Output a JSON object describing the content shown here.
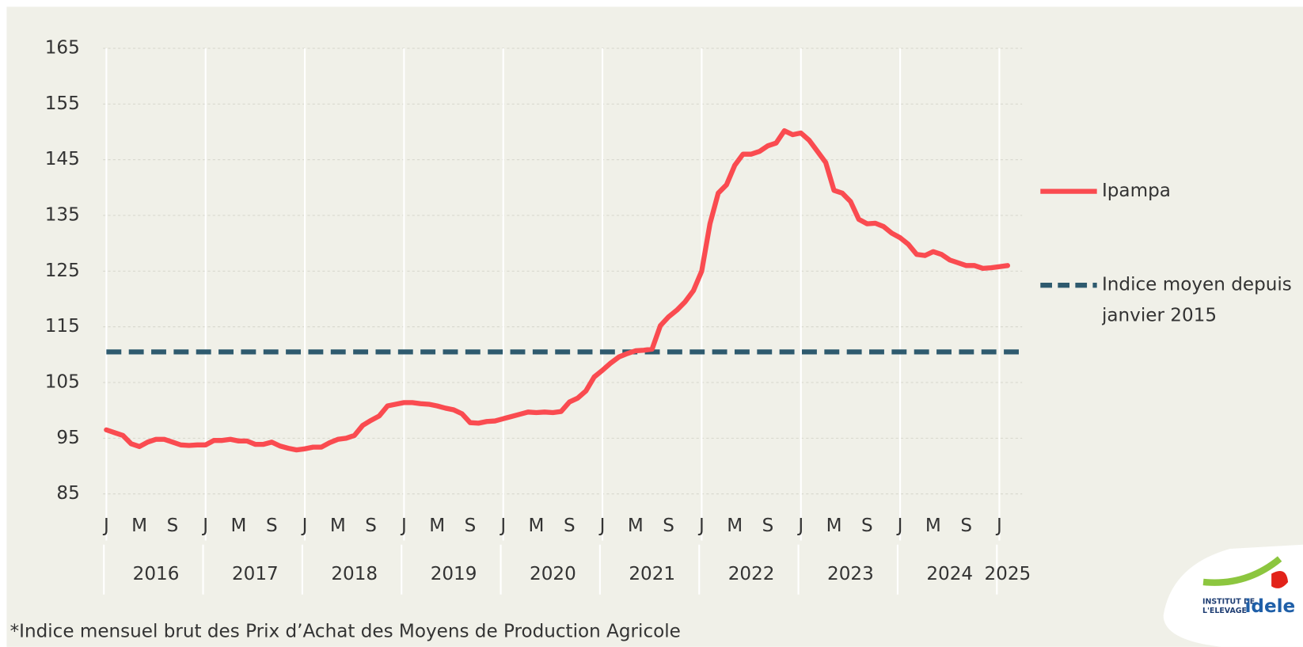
{
  "chart_data": {
    "type": "line",
    "categories": [
      "J",
      null,
      null,
      null,
      "M",
      null,
      null,
      null,
      "S",
      null,
      null,
      null,
      "J",
      null,
      null,
      null,
      "M",
      null,
      null,
      null,
      "S",
      null,
      null,
      null,
      "J",
      null,
      null,
      null,
      "M",
      null,
      null,
      null,
      "S",
      null,
      null,
      null,
      "J",
      null,
      null,
      null,
      "M",
      null,
      null,
      null,
      "S",
      null,
      null,
      null,
      "J",
      null,
      null,
      null,
      "M",
      null,
      null,
      null,
      "S",
      null,
      null,
      null,
      "J",
      null,
      null,
      null,
      "M",
      null,
      null,
      null,
      "S",
      null,
      null,
      null,
      "J",
      null,
      null,
      null,
      "M",
      null,
      null,
      null,
      "S",
      null,
      null,
      null,
      "J",
      null,
      null,
      null,
      "M",
      null,
      null,
      null,
      "S",
      null,
      null,
      null,
      "J",
      null,
      null,
      null,
      "M",
      null,
      null,
      null,
      "S",
      null,
      null,
      null,
      "J",
      null
    ],
    "years": [
      "2016",
      "2017",
      "2018",
      "2019",
      "2020",
      "2021",
      "2022",
      "2023",
      "2024",
      "2025"
    ],
    "series": [
      {
        "name": "Ipampa",
        "color": "#fa4b50",
        "values": [
          96.5,
          96,
          95.5,
          94,
          93.5,
          94.3,
          94.8,
          94.8,
          94.3,
          93.8,
          93.7,
          93.8,
          93.8,
          94.6,
          94.6,
          94.8,
          94.5,
          94.5,
          93.9,
          93.9,
          94.3,
          93.6,
          93.2,
          92.9,
          93.1,
          93.4,
          93.4,
          94.2,
          94.8,
          95,
          95.5,
          97.3,
          98.2,
          99,
          100.8,
          101.1,
          101.4,
          101.4,
          101.2,
          101.1,
          100.8,
          100.4,
          100.1,
          99.4,
          97.8,
          97.7,
          98,
          98.1,
          98.5,
          98.9,
          99.3,
          99.7,
          99.6,
          99.7,
          99.6,
          99.8,
          101.5,
          102.2,
          103.5,
          106,
          107.2,
          108.5,
          109.6,
          110.2,
          110.7,
          110.8,
          111,
          115.2,
          116.8,
          118,
          119.5,
          121.5,
          125,
          133.5,
          139,
          140.5,
          144,
          146,
          146,
          146.5,
          147.5,
          148,
          150.2,
          149.5,
          149.8,
          148.5,
          146.5,
          144.5,
          139.5,
          139,
          137.5,
          134.3,
          133.5,
          133.6,
          133,
          131.8,
          131,
          129.8,
          128,
          127.8,
          128.5,
          128,
          127,
          126.5,
          126,
          126,
          125.5,
          125.6,
          125.8,
          126
        ]
      }
    ],
    "reference_line": {
      "name": "Indice moyen depuis janvier 2015",
      "value": 110.5,
      "color": "#2e5a6e",
      "style": "dashed"
    },
    "ylim": [
      85,
      165
    ],
    "yticks": [
      85,
      95,
      105,
      115,
      125,
      135,
      145,
      155,
      165
    ],
    "grid": true,
    "footnote": "*Indice mensuel brut des Prix d’Achat des Moyens de Production Agricole"
  },
  "logo": {
    "line1": "INSTITUT DE",
    "line2": "L'ELEVAGE",
    "brand": "idele"
  }
}
